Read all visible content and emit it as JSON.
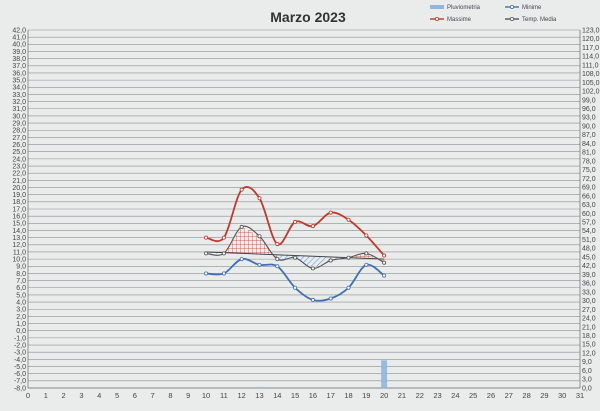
{
  "chart_data": {
    "type": "line",
    "title": "Marzo 2023",
    "categories": [
      "0",
      "1",
      "2",
      "3",
      "4",
      "5",
      "6",
      "7",
      "8",
      "9",
      "10",
      "11",
      "12",
      "13",
      "14",
      "15",
      "16",
      "17",
      "18",
      "19",
      "20",
      "21",
      "22",
      "23",
      "24",
      "25",
      "26",
      "27",
      "28",
      "29",
      "30",
      "31"
    ],
    "ylim_left": [
      -8,
      42
    ],
    "ylim_right": [
      0,
      123
    ],
    "yticks_left": [
      "42,0",
      "41,0",
      "40,0",
      "39,0",
      "38,0",
      "37,0",
      "36,0",
      "35,0",
      "34,0",
      "33,0",
      "32,0",
      "31,0",
      "30,0",
      "29,0",
      "28,0",
      "27,0",
      "26,0",
      "25,0",
      "24,0",
      "23,0",
      "22,0",
      "21,0",
      "20,0",
      "19,0",
      "18,0",
      "17,0",
      "16,0",
      "15,0",
      "14,0",
      "13,0",
      "12,0",
      "11,0",
      "10,0",
      "9,0",
      "8,0",
      "7,0",
      "6,0",
      "5,0",
      "4,0",
      "3,0",
      "2,0",
      "1,0",
      "0,0",
      "-1,0",
      "-2,0",
      "-3,0",
      "-4,0",
      "-5,0",
      "-6,0",
      "-7,0",
      "-8,0"
    ],
    "yticks_right": [
      "123,0",
      "120,0",
      "117,0",
      "114,0",
      "111,0",
      "108,0",
      "105,0",
      "102,0",
      "99,0",
      "96,0",
      "93,0",
      "90,0",
      "87,0",
      "84,0",
      "81,0",
      "78,0",
      "75,0",
      "72,0",
      "69,0",
      "66,0",
      "63,0",
      "60,0",
      "57,0",
      "54,0",
      "51,0",
      "48,0",
      "45,0",
      "42,0",
      "39,0",
      "36,0",
      "33,0",
      "30,0",
      "27,0",
      "24,0",
      "21,0",
      "18,0",
      "15,0",
      "12,0",
      "9,0",
      "6,0",
      "3,0",
      "0,0"
    ],
    "series": [
      {
        "name": "Pluviometria",
        "axis": "right",
        "kind": "bar",
        "color": "#8fb7dc",
        "x": [
          13,
          20
        ],
        "values": [
          0.3,
          9.5
        ]
      },
      {
        "name": "Minime",
        "axis": "left",
        "color": "#3f6fb5",
        "x": [
          10,
          11,
          12,
          13,
          14,
          15,
          16,
          17,
          18,
          19,
          20
        ],
        "values": [
          8.0,
          8.0,
          10.0,
          9.2,
          9.0,
          6.0,
          4.3,
          4.5,
          6.0,
          9.2,
          7.7
        ]
      },
      {
        "name": "Massime",
        "axis": "left",
        "color": "#c0392b",
        "x": [
          10,
          11,
          12,
          13,
          14,
          15,
          16,
          17,
          18,
          19,
          20
        ],
        "values": [
          13.0,
          13.0,
          19.7,
          18.5,
          12.1,
          15.2,
          14.6,
          16.5,
          15.5,
          13.3,
          10.5
        ]
      },
      {
        "name": "Temp. Media",
        "axis": "left",
        "color": "#555555",
        "x": [
          10,
          11,
          12,
          13,
          14,
          15,
          16,
          17,
          18,
          19,
          20
        ],
        "values": [
          10.8,
          10.8,
          14.5,
          13.2,
          10.0,
          10.2,
          8.7,
          9.8,
          10.2,
          10.8,
          9.5
        ]
      },
      {
        "name": "",
        "kind": "reference",
        "color": "#444444",
        "x": [
          10,
          20
        ],
        "values": [
          11.0,
          10.0
        ]
      }
    ],
    "legend": "top-right",
    "grid": true
  }
}
